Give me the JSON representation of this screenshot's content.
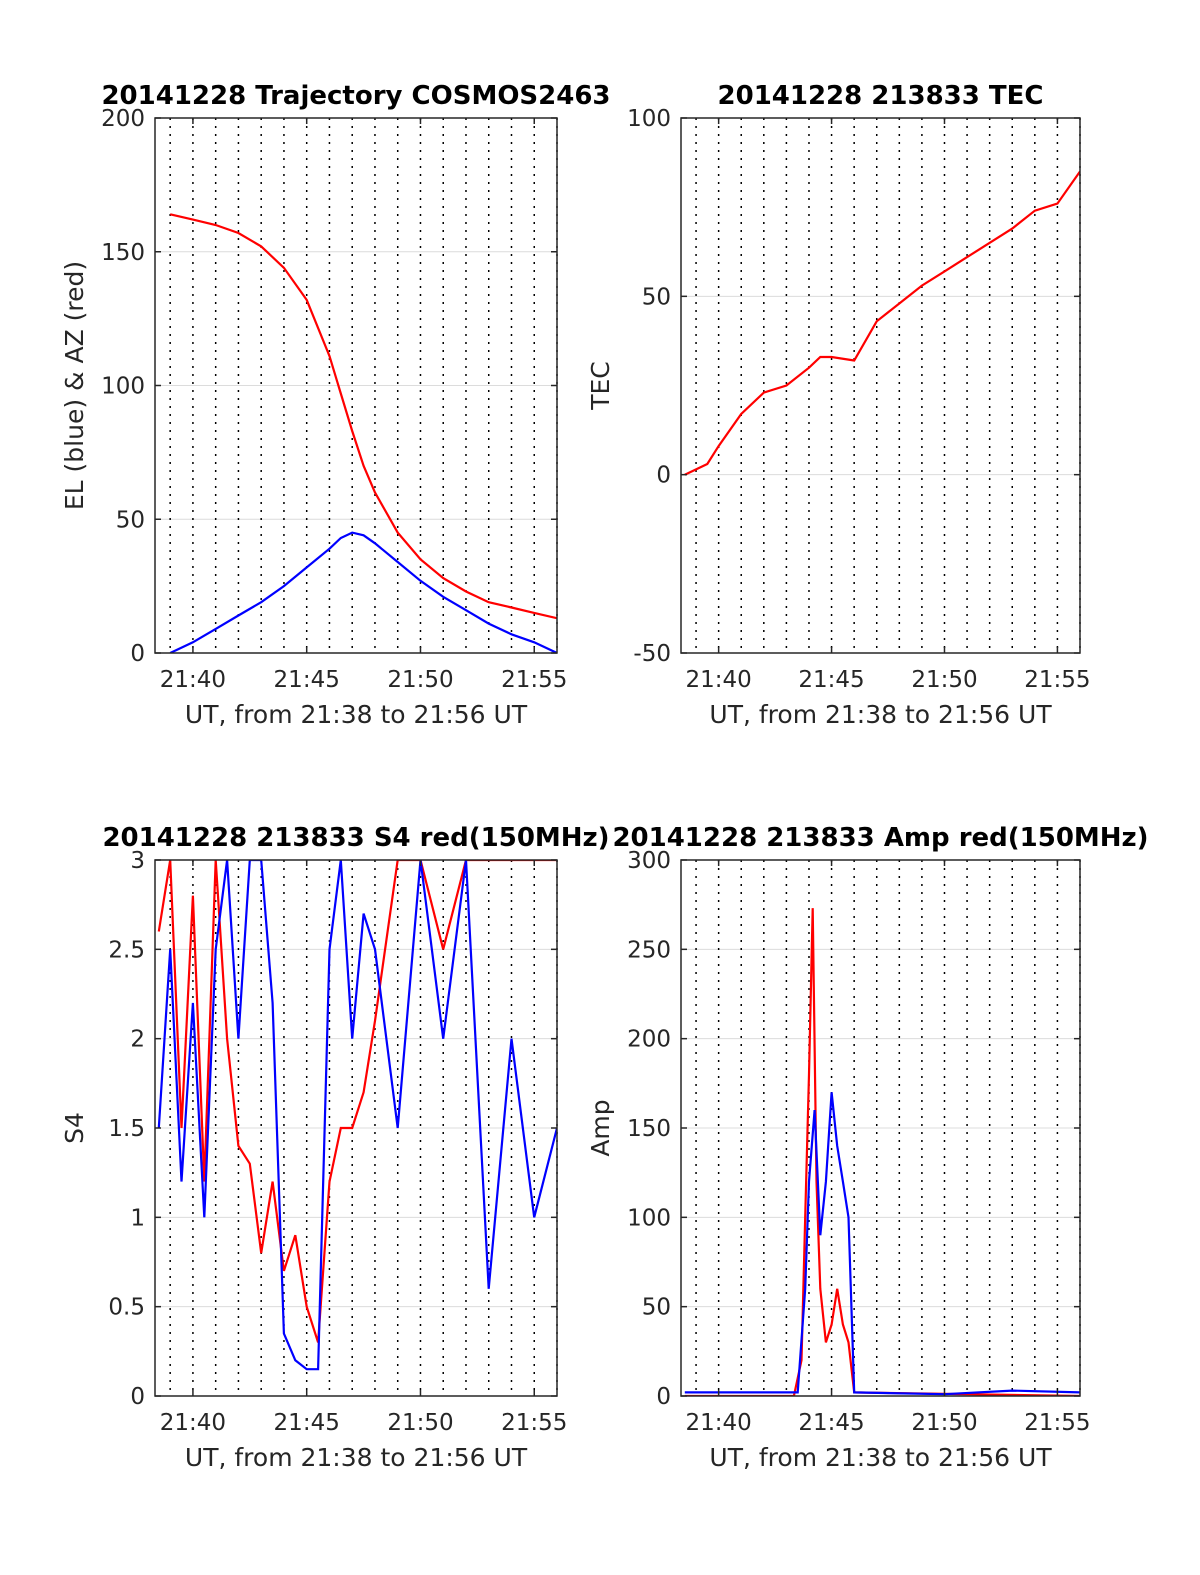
{
  "colors": {
    "red": "#ff0000",
    "blue": "#0000ff",
    "axis": "#262626",
    "grid": "#dcdcdc"
  },
  "chart_data": [
    {
      "type": "line",
      "title": "20141228 Trajectory COSMOS2463",
      "xlabel": "UT, from 21:38 to 21:56 UT",
      "ylabel": "EL (blue) & AZ (red)",
      "xlim": [
        "21:38:20",
        "21:56:00"
      ],
      "ylim": [
        0,
        200
      ],
      "xticks": [
        "21:40",
        "21:45",
        "21:50",
        "21:55"
      ],
      "yticks": [
        0,
        50,
        100,
        150,
        200
      ],
      "grid": "dotted vertical every minute, light horizontal",
      "series": [
        {
          "color": "red",
          "x": [
            "21:39:00",
            "21:40:00",
            "21:41:00",
            "21:42:00",
            "21:43:00",
            "21:44:00",
            "21:45:00",
            "21:46:00",
            "21:46:30",
            "21:47:00",
            "21:47:30",
            "21:48:00",
            "21:49:00",
            "21:50:00",
            "21:51:00",
            "21:52:00",
            "21:53:00",
            "21:54:00",
            "21:55:00",
            "21:56:00"
          ],
          "y": [
            164,
            162,
            160,
            157,
            152,
            144,
            132,
            111,
            97,
            83,
            70,
            60,
            45,
            35,
            28,
            23,
            19,
            17,
            15,
            13
          ]
        },
        {
          "color": "blue",
          "x": [
            "21:39:00",
            "21:40:00",
            "21:41:00",
            "21:42:00",
            "21:43:00",
            "21:44:00",
            "21:45:00",
            "21:46:00",
            "21:46:30",
            "21:47:00",
            "21:47:30",
            "21:48:00",
            "21:49:00",
            "21:50:00",
            "21:51:00",
            "21:52:00",
            "21:53:00",
            "21:54:00",
            "21:55:00",
            "21:56:00"
          ],
          "y": [
            0,
            4,
            9,
            14,
            19,
            25,
            32,
            39,
            43,
            45,
            44,
            41,
            34,
            27,
            21,
            16,
            11,
            7,
            4,
            0
          ]
        }
      ]
    },
    {
      "type": "line",
      "title": "20141228 213833 TEC",
      "xlabel": "UT, from 21:38 to 21:56 UT",
      "ylabel": "TEC",
      "xlim": [
        "21:38:20",
        "21:56:00"
      ],
      "ylim": [
        -50,
        100
      ],
      "xticks": [
        "21:40",
        "21:45",
        "21:50",
        "21:55"
      ],
      "yticks": [
        -50,
        0,
        50,
        100
      ],
      "grid": "dotted vertical every minute, light horizontal",
      "series": [
        {
          "color": "red",
          "x": [
            "21:38:30",
            "21:39:30",
            "21:40:00",
            "21:41:00",
            "21:42:00",
            "21:43:00",
            "21:44:00",
            "21:44:30",
            "21:45:00",
            "21:46:00",
            "21:47:00",
            "21:48:00",
            "21:49:00",
            "21:50:00",
            "21:51:00",
            "21:52:00",
            "21:53:00",
            "21:54:00",
            "21:55:00",
            "21:56:00"
          ],
          "y": [
            0,
            3,
            8,
            17,
            23,
            25,
            30,
            33,
            33,
            32,
            43,
            48,
            53,
            57,
            61,
            65,
            69,
            74,
            76,
            85
          ]
        }
      ]
    },
    {
      "type": "line",
      "title": "20141228 213833 S4 red(150MHz)",
      "xlabel": "UT, from 21:38 to 21:56 UT",
      "ylabel": "S4",
      "xlim": [
        "21:38:20",
        "21:56:00"
      ],
      "ylim": [
        0,
        3
      ],
      "xticks": [
        "21:40",
        "21:45",
        "21:50",
        "21:55"
      ],
      "yticks": [
        0,
        0.5,
        1,
        1.5,
        2,
        2.5,
        3
      ],
      "grid": "dotted vertical every minute, light horizontal",
      "series": [
        {
          "color": "red",
          "x": [
            "21:38:30",
            "21:39:00",
            "21:39:30",
            "21:40:00",
            "21:40:30",
            "21:41:00",
            "21:41:30",
            "21:42:00",
            "21:42:30",
            "21:43:00",
            "21:43:30",
            "21:44:00",
            "21:44:30",
            "21:45:00",
            "21:45:30",
            "21:46:00",
            "21:46:30",
            "21:47:00",
            "21:47:30",
            "21:48:00",
            "21:49:00",
            "21:50:00",
            "21:51:00",
            "21:52:00",
            "21:53:00",
            "21:54:00",
            "21:55:00",
            "21:56:00"
          ],
          "y": [
            2.6,
            3,
            1.5,
            2.8,
            1.2,
            3,
            2,
            1.4,
            1.3,
            0.8,
            1.2,
            0.7,
            0.9,
            0.5,
            0.3,
            1.2,
            1.5,
            1.5,
            1.7,
            2.1,
            3,
            3,
            2.5,
            3,
            3,
            3,
            3,
            3
          ]
        },
        {
          "color": "blue",
          "x": [
            "21:38:30",
            "21:39:00",
            "21:39:30",
            "21:40:00",
            "21:40:30",
            "21:41:00",
            "21:41:30",
            "21:42:00",
            "21:42:30",
            "21:43:00",
            "21:43:30",
            "21:44:00",
            "21:44:30",
            "21:45:00",
            "21:45:30",
            "21:46:00",
            "21:46:30",
            "21:47:00",
            "21:47:30",
            "21:48:00",
            "21:49:00",
            "21:50:00",
            "21:51:00",
            "21:52:00",
            "21:53:00",
            "21:54:00",
            "21:55:00",
            "21:56:00"
          ],
          "y": [
            1.5,
            2.5,
            1.2,
            2.2,
            1,
            2.5,
            3,
            2,
            3,
            3,
            2.2,
            0.35,
            0.2,
            0.15,
            0.15,
            2.5,
            3,
            2,
            2.7,
            2.5,
            1.5,
            3,
            2,
            3,
            0.6,
            2,
            1,
            1.5
          ]
        }
      ]
    },
    {
      "type": "line",
      "title": "20141228 213833 Amp red(150MHz)",
      "xlabel": "UT, from 21:38 to 21:56 UT",
      "ylabel": "Amp",
      "xlim": [
        "21:38:20",
        "21:56:00"
      ],
      "ylim": [
        0,
        300
      ],
      "xticks": [
        "21:40",
        "21:45",
        "21:50",
        "21:55"
      ],
      "yticks": [
        0,
        50,
        100,
        150,
        200,
        250,
        300
      ],
      "grid": "dotted vertical every minute, light horizontal",
      "series": [
        {
          "color": "red",
          "x": [
            "21:38:30",
            "21:43:20",
            "21:43:40",
            "21:43:50",
            "21:44:00",
            "21:44:10",
            "21:44:20",
            "21:44:30",
            "21:44:45",
            "21:45:00",
            "21:45:15",
            "21:45:30",
            "21:45:45",
            "21:46:00",
            "21:56:00"
          ],
          "y": [
            0,
            0,
            20,
            100,
            180,
            273,
            120,
            60,
            30,
            40,
            60,
            40,
            30,
            2,
            0
          ]
        },
        {
          "color": "blue",
          "x": [
            "21:38:30",
            "21:43:30",
            "21:43:50",
            "21:44:00",
            "21:44:15",
            "21:44:30",
            "21:44:45",
            "21:45:00",
            "21:45:15",
            "21:45:30",
            "21:45:45",
            "21:46:00",
            "21:50:00",
            "21:53:00",
            "21:56:00"
          ],
          "y": [
            2,
            2,
            60,
            120,
            160,
            90,
            120,
            170,
            140,
            120,
            100,
            2,
            1,
            3,
            2
          ]
        }
      ]
    }
  ]
}
